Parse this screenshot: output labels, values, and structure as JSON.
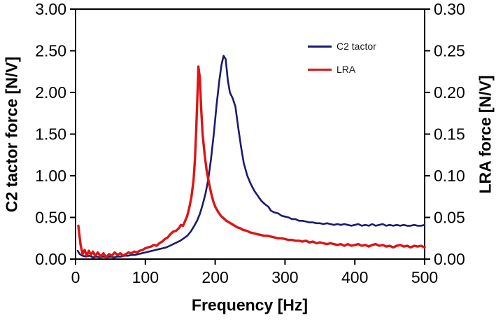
{
  "figure": {
    "background": "#ffffff",
    "frame_color": "#000000"
  },
  "chart_data": {
    "type": "line",
    "title": "",
    "xlabel": "Frequency [Hz]",
    "ylabel_left": "C2 tactor force [N/V]",
    "ylabel_right": "LRA force [N/V]",
    "x_range": [
      0,
      500
    ],
    "x_tick_labels": [
      "0",
      "100",
      "200",
      "300",
      "400",
      "500"
    ],
    "y_left_range": [
      0,
      3.0
    ],
    "y_left_tick_labels": [
      "0.00",
      "0.50",
      "1.00",
      "1.50",
      "2.00",
      "2.50",
      "3.00"
    ],
    "y_right_range": [
      0,
      0.3
    ],
    "y_right_tick_labels": [
      "0.00",
      "0.05",
      "0.10",
      "0.15",
      "0.20",
      "0.25",
      "0.30"
    ],
    "grid": false,
    "legend_position": "upper-right-inside",
    "series": [
      {
        "name": "C2 tactor",
        "axis": "left",
        "color": "#1b1b6e",
        "width": 2.6,
        "peak": {
          "x": 212,
          "y": 2.44
        },
        "points": [
          [
            3,
            0.1
          ],
          [
            6,
            0.06
          ],
          [
            10,
            0.04
          ],
          [
            15,
            0.03
          ],
          [
            20,
            0.04
          ],
          [
            25,
            0.02
          ],
          [
            30,
            0.03
          ],
          [
            35,
            0.02
          ],
          [
            40,
            0.03
          ],
          [
            45,
            0.02
          ],
          [
            50,
            0.03
          ],
          [
            55,
            0.02
          ],
          [
            60,
            0.03
          ],
          [
            65,
            0.03
          ],
          [
            70,
            0.04
          ],
          [
            75,
            0.04
          ],
          [
            80,
            0.05
          ],
          [
            85,
            0.05
          ],
          [
            90,
            0.06
          ],
          [
            95,
            0.07
          ],
          [
            100,
            0.08
          ],
          [
            105,
            0.09
          ],
          [
            110,
            0.1
          ],
          [
            115,
            0.11
          ],
          [
            120,
            0.12
          ],
          [
            125,
            0.13
          ],
          [
            130,
            0.14
          ],
          [
            135,
            0.16
          ],
          [
            140,
            0.18
          ],
          [
            145,
            0.2
          ],
          [
            150,
            0.22
          ],
          [
            155,
            0.25
          ],
          [
            160,
            0.28
          ],
          [
            165,
            0.33
          ],
          [
            170,
            0.4
          ],
          [
            174,
            0.46
          ],
          [
            178,
            0.54
          ],
          [
            182,
            0.65
          ],
          [
            186,
            0.78
          ],
          [
            190,
            0.95
          ],
          [
            194,
            1.2
          ],
          [
            198,
            1.5
          ],
          [
            202,
            1.85
          ],
          [
            206,
            2.15
          ],
          [
            209,
            2.33
          ],
          [
            212,
            2.44
          ],
          [
            215,
            2.4
          ],
          [
            218,
            2.15
          ],
          [
            221,
            2.0
          ],
          [
            225,
            1.93
          ],
          [
            229,
            1.83
          ],
          [
            233,
            1.58
          ],
          [
            237,
            1.35
          ],
          [
            241,
            1.15
          ],
          [
            246,
            1.0
          ],
          [
            251,
            0.9
          ],
          [
            256,
            0.82
          ],
          [
            261,
            0.76
          ],
          [
            266,
            0.7
          ],
          [
            271,
            0.66
          ],
          [
            276,
            0.63
          ],
          [
            280,
            0.58
          ],
          [
            285,
            0.56
          ],
          [
            290,
            0.55
          ],
          [
            295,
            0.52
          ],
          [
            300,
            0.51
          ],
          [
            305,
            0.5
          ],
          [
            310,
            0.48
          ],
          [
            315,
            0.48
          ],
          [
            320,
            0.46
          ],
          [
            325,
            0.46
          ],
          [
            330,
            0.45
          ],
          [
            335,
            0.44
          ],
          [
            340,
            0.44
          ],
          [
            345,
            0.43
          ],
          [
            350,
            0.43
          ],
          [
            355,
            0.42
          ],
          [
            360,
            0.43
          ],
          [
            365,
            0.42
          ],
          [
            370,
            0.41
          ],
          [
            375,
            0.42
          ],
          [
            380,
            0.41
          ],
          [
            385,
            0.42
          ],
          [
            390,
            0.41
          ],
          [
            395,
            0.4
          ],
          [
            400,
            0.41
          ],
          [
            405,
            0.42
          ],
          [
            410,
            0.4
          ],
          [
            415,
            0.41
          ],
          [
            420,
            0.4
          ],
          [
            425,
            0.42
          ],
          [
            430,
            0.4
          ],
          [
            435,
            0.41
          ],
          [
            440,
            0.42
          ],
          [
            445,
            0.4
          ],
          [
            450,
            0.41
          ],
          [
            455,
            0.4
          ],
          [
            460,
            0.41
          ],
          [
            465,
            0.4
          ],
          [
            470,
            0.41
          ],
          [
            475,
            0.4
          ],
          [
            480,
            0.4
          ],
          [
            485,
            0.41
          ],
          [
            490,
            0.4
          ],
          [
            495,
            0.4
          ],
          [
            500,
            0.41
          ]
        ]
      },
      {
        "name": "LRA",
        "axis": "right",
        "color": "#dd1414",
        "width": 3.4,
        "peak": {
          "x": 176,
          "y": 0.231
        },
        "points": [
          [
            4,
            0.04
          ],
          [
            7,
            0.018
          ],
          [
            10,
            0.006
          ],
          [
            13,
            0.011
          ],
          [
            16,
            0.004
          ],
          [
            19,
            0.01
          ],
          [
            22,
            0.005
          ],
          [
            25,
            0.009
          ],
          [
            28,
            0.004
          ],
          [
            32,
            0.008
          ],
          [
            36,
            0.003
          ],
          [
            40,
            0.007
          ],
          [
            44,
            0.002
          ],
          [
            48,
            0.006
          ],
          [
            52,
            0.004
          ],
          [
            56,
            0.008
          ],
          [
            60,
            0.005
          ],
          [
            64,
            0.007
          ],
          [
            68,
            0.004
          ],
          [
            72,
            0.006
          ],
          [
            76,
            0.008
          ],
          [
            80,
            0.007
          ],
          [
            84,
            0.009
          ],
          [
            88,
            0.008
          ],
          [
            92,
            0.01
          ],
          [
            96,
            0.011
          ],
          [
            100,
            0.013
          ],
          [
            104,
            0.014
          ],
          [
            108,
            0.015
          ],
          [
            112,
            0.017
          ],
          [
            116,
            0.016
          ],
          [
            120,
            0.019
          ],
          [
            124,
            0.021
          ],
          [
            128,
            0.024
          ],
          [
            132,
            0.026
          ],
          [
            136,
            0.03
          ],
          [
            140,
            0.033
          ],
          [
            144,
            0.034
          ],
          [
            148,
            0.037
          ],
          [
            151,
            0.041
          ],
          [
            154,
            0.04
          ],
          [
            157,
            0.046
          ],
          [
            160,
            0.052
          ],
          [
            163,
            0.062
          ],
          [
            166,
            0.075
          ],
          [
            169,
            0.095
          ],
          [
            171,
            0.12
          ],
          [
            173,
            0.16
          ],
          [
            175,
            0.205
          ],
          [
            176,
            0.231
          ],
          [
            178,
            0.218
          ],
          [
            180,
            0.18
          ],
          [
            182,
            0.15
          ],
          [
            185,
            0.125
          ],
          [
            188,
            0.105
          ],
          [
            191,
            0.092
          ],
          [
            194,
            0.08
          ],
          [
            197,
            0.07
          ],
          [
            200,
            0.063
          ],
          [
            204,
            0.057
          ],
          [
            208,
            0.052
          ],
          [
            212,
            0.049
          ],
          [
            216,
            0.046
          ],
          [
            220,
            0.044
          ],
          [
            224,
            0.042
          ],
          [
            228,
            0.04
          ],
          [
            232,
            0.038
          ],
          [
            236,
            0.037
          ],
          [
            240,
            0.035
          ],
          [
            245,
            0.034
          ],
          [
            250,
            0.032
          ],
          [
            255,
            0.031
          ],
          [
            260,
            0.03
          ],
          [
            265,
            0.029
          ],
          [
            270,
            0.028
          ],
          [
            275,
            0.028
          ],
          [
            280,
            0.027
          ],
          [
            285,
            0.026
          ],
          [
            290,
            0.025
          ],
          [
            295,
            0.025
          ],
          [
            300,
            0.024
          ],
          [
            305,
            0.023
          ],
          [
            310,
            0.023
          ],
          [
            315,
            0.022
          ],
          [
            320,
            0.022
          ],
          [
            325,
            0.021
          ],
          [
            330,
            0.022
          ],
          [
            335,
            0.02
          ],
          [
            340,
            0.021
          ],
          [
            345,
            0.019
          ],
          [
            350,
            0.02
          ],
          [
            355,
            0.019
          ],
          [
            360,
            0.018
          ],
          [
            365,
            0.019
          ],
          [
            370,
            0.018
          ],
          [
            375,
            0.017
          ],
          [
            380,
            0.018
          ],
          [
            385,
            0.016
          ],
          [
            390,
            0.018
          ],
          [
            395,
            0.016
          ],
          [
            400,
            0.017
          ],
          [
            405,
            0.018
          ],
          [
            410,
            0.016
          ],
          [
            415,
            0.017
          ],
          [
            420,
            0.015
          ],
          [
            425,
            0.017
          ],
          [
            430,
            0.018
          ],
          [
            435,
            0.016
          ],
          [
            440,
            0.017
          ],
          [
            445,
            0.015
          ],
          [
            450,
            0.016
          ],
          [
            455,
            0.014
          ],
          [
            460,
            0.016
          ],
          [
            465,
            0.017
          ],
          [
            470,
            0.015
          ],
          [
            475,
            0.016
          ],
          [
            480,
            0.014
          ],
          [
            485,
            0.016
          ],
          [
            490,
            0.015
          ],
          [
            495,
            0.016
          ],
          [
            500,
            0.014
          ]
        ]
      }
    ]
  },
  "legend": {
    "items": [
      {
        "label": "C2 tactor",
        "color": "#1b1b6e"
      },
      {
        "label": "LRA",
        "color": "#dd1414"
      }
    ]
  }
}
